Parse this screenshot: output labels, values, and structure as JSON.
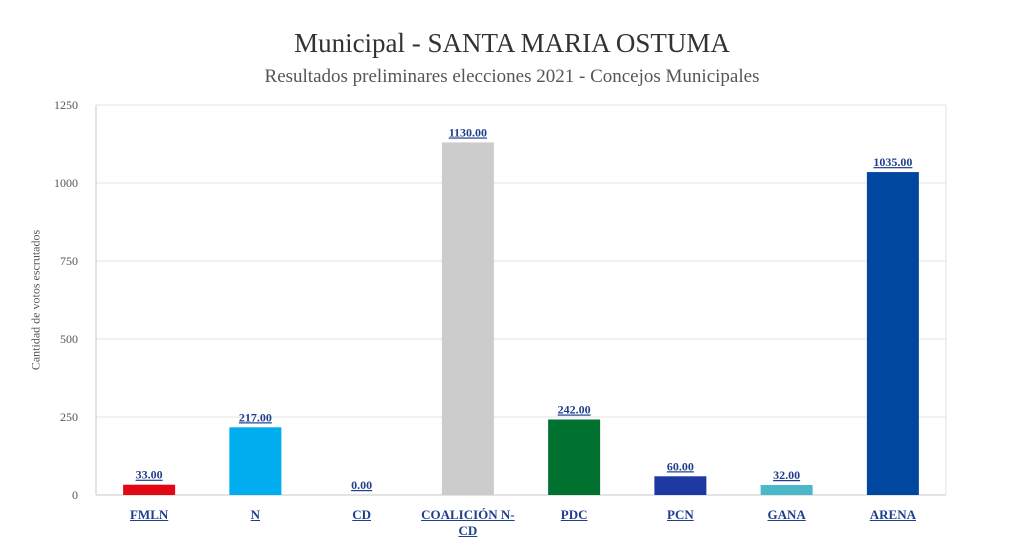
{
  "chart_data": {
    "type": "bar",
    "title": "Municipal - SANTA MARIA OSTUMA",
    "subtitle": "Resultados preliminares elecciones 2021 - Concejos Municipales",
    "ylabel": "Cantidad de votos escrutados",
    "xlabel": "",
    "ylim": [
      0,
      1250
    ],
    "yticks": [
      0,
      250,
      500,
      750,
      1000,
      1250
    ],
    "grid": true,
    "categories": [
      "FMLN",
      "N",
      "CD",
      "COALICIÓN N-CD",
      "PDC",
      "PCN",
      "GANA",
      "ARENA"
    ],
    "values": [
      33,
      217,
      0,
      1130,
      242,
      60,
      32,
      1035
    ],
    "data_labels": [
      "33.00",
      "217.00",
      "0.00",
      "1130.00",
      "242.00",
      "60.00",
      "32.00",
      "1035.00"
    ],
    "colors": [
      "#e30613",
      "#00adef",
      "#f39200",
      "#cccccc",
      "#00712f",
      "#1d3aa4",
      "#4ab8c8",
      "#0047a0"
    ]
  }
}
